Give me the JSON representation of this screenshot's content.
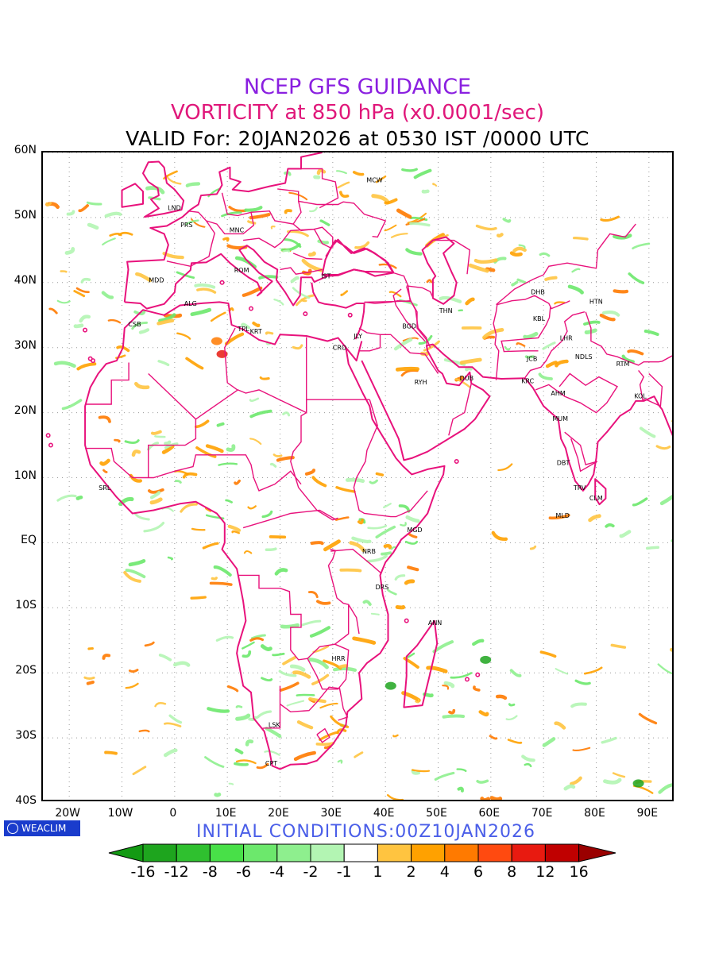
{
  "titles": {
    "line1": "NCEP GFS GUIDANCE",
    "line2": "VORTICITY at 850 hPa (x0.0001/sec)",
    "line3": "VALID For: 20JAN2026 at 0530 IST /0000 UTC"
  },
  "colors": {
    "line1": "#8a1fe0",
    "line2": "#e0177a",
    "boundary": "#e8127c",
    "init_text": "#4a5ee8",
    "logo_bg": "#1a3ccc"
  },
  "map": {
    "lon_range": [
      -25,
      95
    ],
    "lat_range": [
      -40,
      60
    ],
    "lat_ticks": [
      {
        "v": 60,
        "label": "60N"
      },
      {
        "v": 50,
        "label": "50N"
      },
      {
        "v": 40,
        "label": "40N"
      },
      {
        "v": 30,
        "label": "30N"
      },
      {
        "v": 20,
        "label": "20N"
      },
      {
        "v": 10,
        "label": "10N"
      },
      {
        "v": 0,
        "label": "EQ"
      },
      {
        "v": -10,
        "label": "10S"
      },
      {
        "v": -20,
        "label": "20S"
      },
      {
        "v": -30,
        "label": "30S"
      },
      {
        "v": -40,
        "label": "40S"
      }
    ],
    "lon_ticks": [
      {
        "v": -20,
        "label": "20W"
      },
      {
        "v": -10,
        "label": "10W"
      },
      {
        "v": 0,
        "label": "0"
      },
      {
        "v": 10,
        "label": "10E"
      },
      {
        "v": 20,
        "label": "20E"
      },
      {
        "v": 30,
        "label": "30E"
      },
      {
        "v": 40,
        "label": "40E"
      },
      {
        "v": 50,
        "label": "50E"
      },
      {
        "v": 60,
        "label": "60E"
      },
      {
        "v": 70,
        "label": "70E"
      },
      {
        "v": 80,
        "label": "80E"
      },
      {
        "v": 90,
        "label": "90E"
      }
    ],
    "cities": [
      {
        "code": "MCW",
        "lon": 37.6,
        "lat": 55.8
      },
      {
        "code": "LND",
        "lon": -0.1,
        "lat": 51.5
      },
      {
        "code": "PRS",
        "lon": 2.3,
        "lat": 48.9
      },
      {
        "code": "MNC",
        "lon": 11.6,
        "lat": 48.1
      },
      {
        "code": "MDD",
        "lon": -3.7,
        "lat": 40.4
      },
      {
        "code": "ROM",
        "lon": 12.5,
        "lat": 41.9
      },
      {
        "code": "IST",
        "lon": 29.0,
        "lat": 41.0
      },
      {
        "code": "ALG",
        "lon": 3.0,
        "lat": 36.8
      },
      {
        "code": "CSB",
        "lon": -7.6,
        "lat": 33.6
      },
      {
        "code": "TPL",
        "lon": 13.2,
        "lat": 32.9
      },
      {
        "code": "KRT",
        "lon": 15.5,
        "lat": 32.5
      },
      {
        "code": "CRO",
        "lon": 31.2,
        "lat": 30.0
      },
      {
        "code": "JLY",
        "lon": 35.2,
        "lat": 31.8
      },
      {
        "code": "BGD",
        "lon": 44.4,
        "lat": 33.3
      },
      {
        "code": "THN",
        "lon": 51.4,
        "lat": 35.7
      },
      {
        "code": "RYH",
        "lon": 46.7,
        "lat": 24.7
      },
      {
        "code": "DUB",
        "lon": 55.3,
        "lat": 25.3
      },
      {
        "code": "DHB",
        "lon": 68.8,
        "lat": 38.6
      },
      {
        "code": "KBL",
        "lon": 69.2,
        "lat": 34.5
      },
      {
        "code": "HTN",
        "lon": 79.9,
        "lat": 37.1
      },
      {
        "code": "LHR",
        "lon": 74.3,
        "lat": 31.5
      },
      {
        "code": "JCB",
        "lon": 68.0,
        "lat": 28.3
      },
      {
        "code": "NDLS",
        "lon": 77.2,
        "lat": 28.6
      },
      {
        "code": "RTM",
        "lon": 85.0,
        "lat": 27.5
      },
      {
        "code": "KRC",
        "lon": 67.0,
        "lat": 24.9
      },
      {
        "code": "AHM",
        "lon": 72.6,
        "lat": 23.0
      },
      {
        "code": "KOL",
        "lon": 88.4,
        "lat": 22.6
      },
      {
        "code": "MUM",
        "lon": 72.9,
        "lat": 19.1
      },
      {
        "code": "DBT",
        "lon": 73.7,
        "lat": 12.3
      },
      {
        "code": "TRV",
        "lon": 76.9,
        "lat": 8.5
      },
      {
        "code": "CLM",
        "lon": 79.9,
        "lat": 6.9
      },
      {
        "code": "MLD",
        "lon": 73.5,
        "lat": 4.2
      },
      {
        "code": "SRL",
        "lon": -13.2,
        "lat": 8.5
      },
      {
        "code": "MGD",
        "lon": 45.3,
        "lat": 2.0
      },
      {
        "code": "NRB",
        "lon": 36.8,
        "lat": -1.3
      },
      {
        "code": "DRS",
        "lon": 39.3,
        "lat": -6.8
      },
      {
        "code": "ANN",
        "lon": 49.3,
        "lat": -12.3
      },
      {
        "code": "HRR",
        "lon": 31.0,
        "lat": -17.8
      },
      {
        "code": "LSK",
        "lon": 19.0,
        "lat": -28.0
      },
      {
        "code": "CPT",
        "lon": 18.4,
        "lat": -33.9
      }
    ]
  },
  "legend": {
    "logo_text": "WEACLIM",
    "init_text": "INITIAL  CONDITIONS:00Z10JAN2026",
    "labels": [
      "-16",
      "-12",
      "-8",
      "-6",
      "-4",
      "-2",
      "-1",
      "1",
      "2",
      "4",
      "6",
      "8",
      "12",
      "16"
    ],
    "bin_colors": [
      "#1ea51e",
      "#2fc02f",
      "#48e048",
      "#6ce86c",
      "#8eef8e",
      "#b3f5b3",
      "#ffffff",
      "#ffc440",
      "#ffa100",
      "#ff7a00",
      "#ff4a10",
      "#e81a10",
      "#c00000"
    ],
    "end_low": "#139a13",
    "end_high": "#9a0000"
  }
}
